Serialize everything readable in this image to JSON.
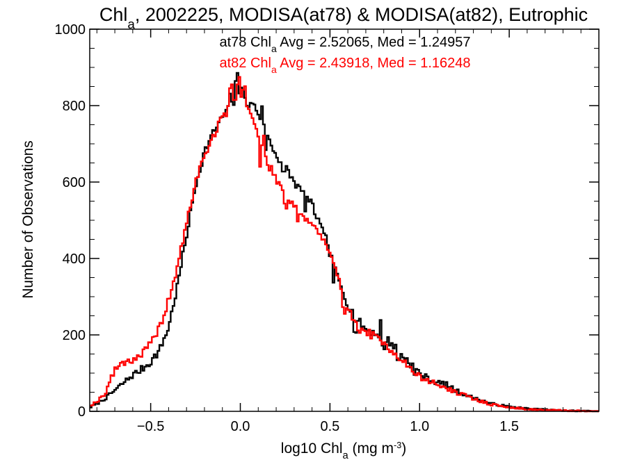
{
  "chart_data": {
    "type": "histogram-step",
    "title": {
      "pre": "Chl",
      "sub": "a",
      "post": ", 2002225, MODISA(at78) & MODISA(at82), Eutrophic"
    },
    "xlabel": {
      "pre": "log10 Chl",
      "sub": "a",
      "mid": " (mg m",
      "sup": "-3",
      "post": ")"
    },
    "ylabel": "Number of Observations",
    "xlim": [
      -0.84,
      2.0
    ],
    "ylim": [
      0,
      1000
    ],
    "xticks": [
      -0.5,
      0.0,
      0.5,
      1.0,
      1.5
    ],
    "xtick_labels": [
      "−0.5",
      "0.0",
      "0.5",
      "1.0",
      "1.5"
    ],
    "yticks": [
      0,
      200,
      400,
      600,
      800,
      1000
    ],
    "ytick_labels": [
      "0",
      "200",
      "400",
      "600",
      "800",
      "1000"
    ],
    "grid": false,
    "annotations": [
      {
        "pre": "at78 Chl",
        "sub": "a",
        "post": " Avg = 2.52065, Med = 1.24957",
        "color": "#000000"
      },
      {
        "pre": "at82 Chl",
        "sub": "a",
        "post": " Avg = 2.43918, Med = 1.16248",
        "color": "#ff0000"
      }
    ],
    "bin_width": 0.0105,
    "series": [
      {
        "key": "at78",
        "color": "#000000",
        "shape": [
          [
            -0.84,
            10
          ],
          [
            -0.8,
            20
          ],
          [
            -0.75,
            35
          ],
          [
            -0.7,
            55
          ],
          [
            -0.65,
            75
          ],
          [
            -0.6,
            95
          ],
          [
            -0.55,
            110
          ],
          [
            -0.5,
            130
          ],
          [
            -0.45,
            160
          ],
          [
            -0.4,
            220
          ],
          [
            -0.35,
            330
          ],
          [
            -0.3,
            460
          ],
          [
            -0.25,
            590
          ],
          [
            -0.2,
            680
          ],
          [
            -0.15,
            730
          ],
          [
            -0.1,
            770
          ],
          [
            -0.05,
            800
          ],
          [
            0.0,
            830
          ],
          [
            0.05,
            820
          ],
          [
            0.1,
            780
          ],
          [
            0.15,
            720
          ],
          [
            0.2,
            670
          ],
          [
            0.25,
            640
          ],
          [
            0.3,
            600
          ],
          [
            0.35,
            570
          ],
          [
            0.4,
            540
          ],
          [
            0.45,
            480
          ],
          [
            0.5,
            410
          ],
          [
            0.55,
            340
          ],
          [
            0.6,
            280
          ],
          [
            0.65,
            240
          ],
          [
            0.7,
            215
          ],
          [
            0.75,
            205
          ],
          [
            0.8,
            195
          ],
          [
            0.85,
            175
          ],
          [
            0.9,
            150
          ],
          [
            0.95,
            125
          ],
          [
            1.0,
            100
          ],
          [
            1.05,
            85
          ],
          [
            1.1,
            75
          ],
          [
            1.15,
            70
          ],
          [
            1.2,
            55
          ],
          [
            1.25,
            45
          ],
          [
            1.3,
            35
          ],
          [
            1.35,
            28
          ],
          [
            1.4,
            20
          ],
          [
            1.5,
            12
          ],
          [
            1.6,
            7
          ],
          [
            1.7,
            4
          ],
          [
            1.8,
            2
          ],
          [
            2.0,
            0
          ]
        ],
        "spikes": [
          [
            -0.06,
            40
          ],
          [
            -0.02,
            55
          ],
          [
            0.01,
            25
          ],
          [
            0.04,
            -30
          ],
          [
            0.12,
            50
          ],
          [
            0.14,
            -40
          ],
          [
            0.24,
            -20
          ],
          [
            0.36,
            -30
          ],
          [
            0.48,
            30
          ],
          [
            0.52,
            -40
          ],
          [
            0.64,
            -35
          ],
          [
            0.78,
            35
          ],
          [
            0.8,
            -30
          ],
          [
            0.88,
            -25
          ],
          [
            0.97,
            -20
          ]
        ],
        "jitter": 11,
        "seed": 7
      },
      {
        "key": "at82",
        "color": "#ff0000",
        "shape": [
          [
            -0.84,
            15
          ],
          [
            -0.8,
            25
          ],
          [
            -0.75,
            50
          ],
          [
            -0.72,
            90
          ],
          [
            -0.68,
            120
          ],
          [
            -0.65,
            130
          ],
          [
            -0.6,
            135
          ],
          [
            -0.55,
            150
          ],
          [
            -0.5,
            175
          ],
          [
            -0.45,
            220
          ],
          [
            -0.4,
            290
          ],
          [
            -0.35,
            380
          ],
          [
            -0.3,
            490
          ],
          [
            -0.25,
            600
          ],
          [
            -0.2,
            670
          ],
          [
            -0.15,
            720
          ],
          [
            -0.1,
            770
          ],
          [
            -0.05,
            800
          ],
          [
            0.0,
            830
          ],
          [
            0.05,
            790
          ],
          [
            0.1,
            720
          ],
          [
            0.15,
            650
          ],
          [
            0.2,
            610
          ],
          [
            0.25,
            570
          ],
          [
            0.3,
            540
          ],
          [
            0.35,
            510
          ],
          [
            0.4,
            490
          ],
          [
            0.45,
            460
          ],
          [
            0.5,
            410
          ],
          [
            0.55,
            340
          ],
          [
            0.6,
            270
          ],
          [
            0.65,
            230
          ],
          [
            0.7,
            210
          ],
          [
            0.75,
            195
          ],
          [
            0.8,
            175
          ],
          [
            0.85,
            160
          ],
          [
            0.9,
            135
          ],
          [
            0.95,
            110
          ],
          [
            1.0,
            90
          ],
          [
            1.05,
            80
          ],
          [
            1.1,
            70
          ],
          [
            1.15,
            60
          ],
          [
            1.2,
            50
          ],
          [
            1.25,
            42
          ],
          [
            1.3,
            33
          ],
          [
            1.35,
            25
          ],
          [
            1.4,
            18
          ],
          [
            1.5,
            10
          ],
          [
            1.6,
            6
          ],
          [
            1.7,
            3
          ],
          [
            1.8,
            2
          ],
          [
            2.0,
            0
          ]
        ],
        "spikes": [
          [
            -0.05,
            50
          ],
          [
            -0.01,
            45
          ],
          [
            0.02,
            35
          ],
          [
            0.11,
            -60
          ],
          [
            0.13,
            40
          ],
          [
            0.25,
            -30
          ],
          [
            0.32,
            -25
          ],
          [
            0.58,
            -30
          ],
          [
            0.66,
            -25
          ]
        ],
        "jitter": 11,
        "seed": 19
      }
    ]
  }
}
